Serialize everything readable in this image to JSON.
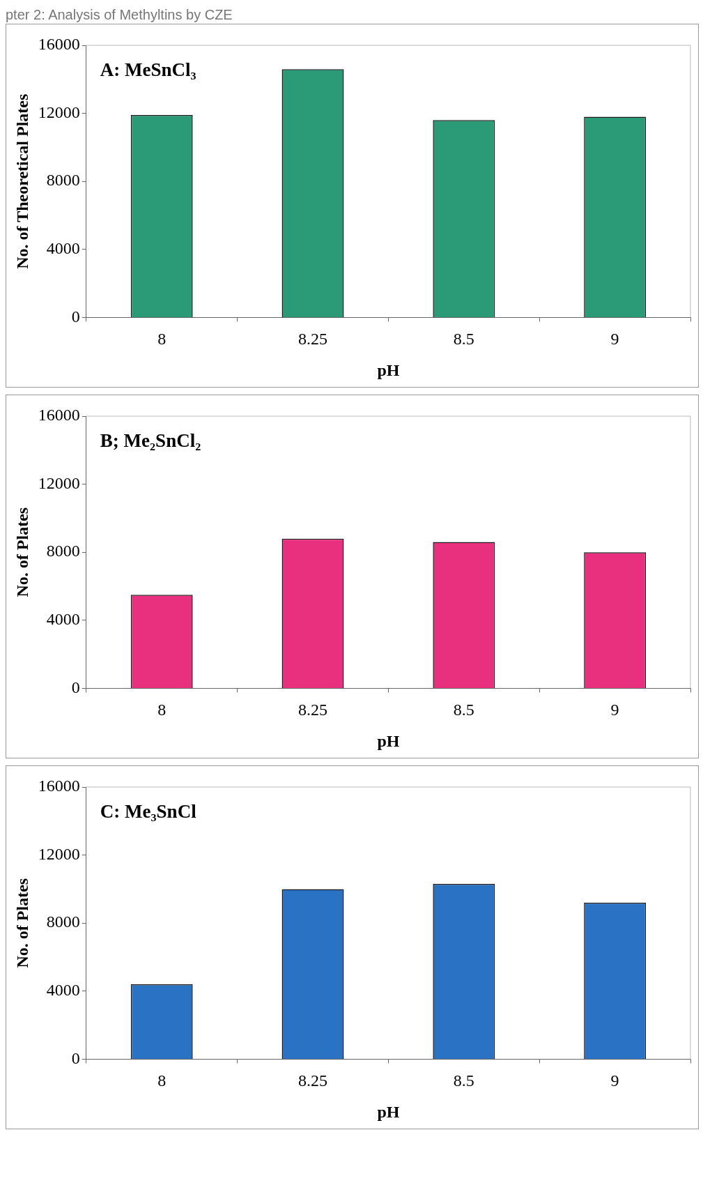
{
  "chart_data": [
    {
      "type": "bar",
      "title": "A: MeSnCl₃",
      "annotations": [
        "pter 2: Analysis of Methyltins by CZE"
      ],
      "xlabel": "pH",
      "ylabel": "No. of Theoretical Plates",
      "categories": [
        "8",
        "8.25",
        "8.5",
        "9"
      ],
      "values": [
        11900,
        14600,
        11600,
        11800
      ],
      "color": "#2a9a77",
      "ylim": [
        0,
        16000
      ],
      "yticks": [
        0,
        4000,
        8000,
        12000,
        16000
      ]
    },
    {
      "type": "bar",
      "title": "B; Me₂SnCl₂",
      "xlabel": "pH",
      "ylabel": "No. of Plates",
      "categories": [
        "8",
        "8.25",
        "8.5",
        "9"
      ],
      "values": [
        5500,
        8800,
        8600,
        8000
      ],
      "color": "#e8307f",
      "ylim": [
        0,
        16000
      ],
      "yticks": [
        0,
        4000,
        8000,
        12000,
        16000
      ]
    },
    {
      "type": "bar",
      "title": "C: Me₃SnCl",
      "xlabel": "pH",
      "ylabel": "No. of Plates",
      "categories": [
        "8",
        "8.25",
        "8.5",
        "9"
      ],
      "values": [
        4400,
        10000,
        10300,
        9200
      ],
      "color": "#2a72c4",
      "ylim": [
        0,
        16000
      ],
      "yticks": [
        0,
        4000,
        8000,
        12000,
        16000
      ]
    }
  ]
}
